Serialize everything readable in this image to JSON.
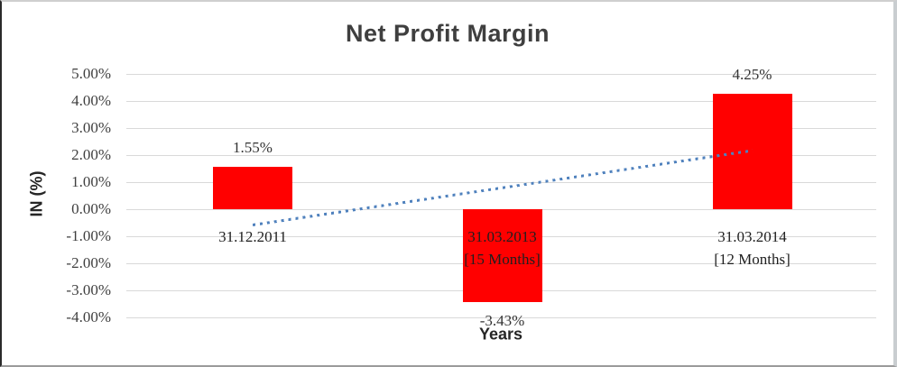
{
  "chart_data": {
    "type": "bar",
    "title": "Net Profit Margin",
    "xlabel": "Years",
    "ylabel": "IN (%)",
    "categories": [
      "31.12.2011",
      "31.03.2013\n[15 Months]",
      "31.03.2014\n[12 Months]"
    ],
    "values": [
      1.55,
      -3.43,
      4.25
    ],
    "value_labels": [
      "1.55%",
      "-3.43%",
      "4.25%"
    ],
    "yticks": [
      {
        "value": 5,
        "label": "5.00%"
      },
      {
        "value": 4,
        "label": "4.00%"
      },
      {
        "value": 3,
        "label": "3.00%"
      },
      {
        "value": 2,
        "label": "2.00%"
      },
      {
        "value": 1,
        "label": "1.00%"
      },
      {
        "value": 0,
        "label": "0.00%"
      },
      {
        "value": -1,
        "label": "-1.00%"
      },
      {
        "value": -2,
        "label": "-2.00%"
      },
      {
        "value": -3,
        "label": "-3.00%"
      },
      {
        "value": -4,
        "label": "-4.00%"
      }
    ],
    "ylim": [
      -4,
      5
    ],
    "grid": true,
    "legend": "none",
    "bar_color": "#ff0000",
    "gridline_color": "#d9d9d9",
    "trendline": {
      "style": "dotted",
      "color": "#4f81bd",
      "start_value": -0.57,
      "end_value": 2.17
    }
  }
}
